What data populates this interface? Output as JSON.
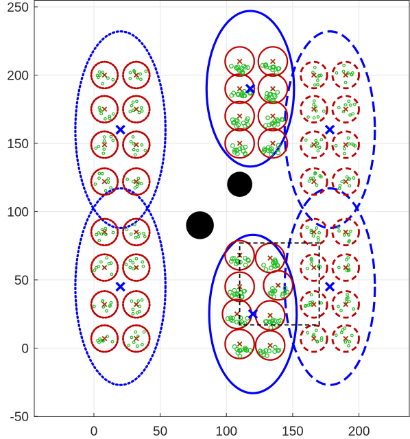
{
  "chart_data": {
    "type": "scatter",
    "title": "",
    "xlabel": "",
    "ylabel": "",
    "xlim": [
      -45,
      238
    ],
    "ylim": [
      -50,
      255
    ],
    "x_ticks": [
      0,
      50,
      100,
      150,
      200
    ],
    "y_ticks": [
      -50,
      0,
      50,
      100,
      150,
      200,
      250
    ],
    "x_tick_labels": [
      "0",
      "50",
      "100",
      "150",
      "200"
    ],
    "y_tick_labels": [
      "-50",
      "0",
      "50",
      "100",
      "150",
      "200",
      "250"
    ],
    "grid": true,
    "colors": {
      "cluster": "#0000ff",
      "cell": "#c00000",
      "cell_center": "#a03000",
      "user": "#22bb22",
      "obstacle": "#000000",
      "box": "#000000",
      "grid": "#e6e6e6"
    },
    "clusters": [
      {
        "center": [
          20,
          160
        ],
        "rx": 34,
        "ry": 72,
        "style": "dotted"
      },
      {
        "center": [
          20,
          45
        ],
        "rx": 34,
        "ry": 72,
        "style": "dotted"
      },
      {
        "center": [
          118,
          190
        ],
        "rx": 33,
        "ry": 57,
        "style": "solid"
      },
      {
        "center": [
          120,
          25
        ],
        "rx": 33,
        "ry": 58,
        "style": "solid"
      },
      {
        "center": [
          178,
          160
        ],
        "rx": 34,
        "ry": 72,
        "style": "dashed"
      },
      {
        "center": [
          178,
          45
        ],
        "rx": 34,
        "ry": 72,
        "style": "dashed"
      }
    ],
    "cells": [
      {
        "group": "left-top",
        "style": "dotted",
        "r": 10,
        "centers": [
          [
            8,
            200
          ],
          [
            32,
            200
          ],
          [
            8,
            175
          ],
          [
            32,
            175
          ],
          [
            8,
            149
          ],
          [
            32,
            149
          ],
          [
            8,
            122
          ],
          [
            32,
            122
          ]
        ]
      },
      {
        "group": "left-bottom",
        "style": "dotted",
        "r": 10,
        "centers": [
          [
            8,
            85
          ],
          [
            32,
            85
          ],
          [
            8,
            59
          ],
          [
            32,
            59
          ],
          [
            8,
            32
          ],
          [
            32,
            32
          ],
          [
            8,
            7
          ],
          [
            32,
            7
          ]
        ]
      },
      {
        "group": "mid-top",
        "style": "solid",
        "r": 11,
        "centers": [
          [
            110,
            210
          ],
          [
            135,
            210
          ],
          [
            110,
            190
          ],
          [
            135,
            190
          ],
          [
            110,
            170
          ],
          [
            135,
            170
          ],
          [
            110,
            150
          ],
          [
            135,
            150
          ]
        ]
      },
      {
        "group": "mid-bottom",
        "style": "solid",
        "r": 11,
        "centers": [
          [
            110,
            68
          ],
          [
            133,
            66
          ],
          [
            110,
            45
          ],
          [
            139,
            46
          ],
          [
            108,
            25
          ],
          [
            133,
            24
          ],
          [
            110,
            3
          ],
          [
            133,
            2
          ]
        ]
      },
      {
        "group": "right-top",
        "style": "dashed",
        "r": 10,
        "centers": [
          [
            166,
            200
          ],
          [
            190,
            200
          ],
          [
            166,
            175
          ],
          [
            190,
            175
          ],
          [
            166,
            149
          ],
          [
            190,
            149
          ],
          [
            166,
            122
          ],
          [
            190,
            122
          ]
        ]
      },
      {
        "group": "right-bottom",
        "style": "dashed",
        "r": 10,
        "centers": [
          [
            166,
            85
          ],
          [
            190,
            85
          ],
          [
            166,
            59
          ],
          [
            190,
            59
          ],
          [
            166,
            32
          ],
          [
            190,
            32
          ],
          [
            166,
            7
          ],
          [
            190,
            7
          ]
        ]
      }
    ],
    "obstacles": [
      {
        "x": 110,
        "y": 120,
        "r": 9.5
      },
      {
        "x": 80,
        "y": 90,
        "r": 10.5
      }
    ],
    "box": {
      "x": [
        110,
        170
      ],
      "y": [
        17,
        77
      ],
      "style": "dashed"
    }
  }
}
